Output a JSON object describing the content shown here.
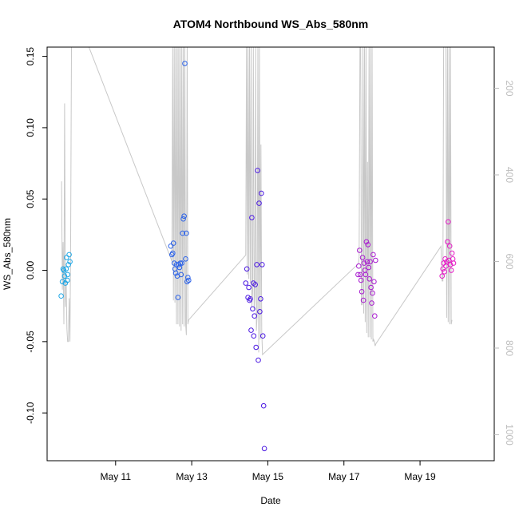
{
  "chart_data": {
    "type": "scatter",
    "title": "ATOM4 Northbound WS_Abs_580nm",
    "xlabel": "Date",
    "ylabel": "WS_Abs_580nm",
    "x_unit": "day_of_may",
    "xlim": [
      9.2,
      20.95
    ],
    "ylim": [
      -0.1335,
      0.1565
    ],
    "x_ticks": [
      {
        "value": 11,
        "label": "May 11"
      },
      {
        "value": 13,
        "label": "May 13"
      },
      {
        "value": 15,
        "label": "May 15"
      },
      {
        "value": 17,
        "label": "May 17"
      },
      {
        "value": 19,
        "label": "May 19"
      }
    ],
    "y_ticks": [
      {
        "value": -0.1,
        "label": "-0.10"
      },
      {
        "value": -0.05,
        "label": "-0.05"
      },
      {
        "value": 0.0,
        "label": "0.00"
      },
      {
        "value": 0.05,
        "label": "0.05"
      },
      {
        "value": 0.1,
        "label": "0.10"
      },
      {
        "value": 0.15,
        "label": "0.15"
      }
    ],
    "right_axis": {
      "lim": [
        1060,
        105
      ],
      "color": "#bdbdbd",
      "ticks": [
        {
          "value": 200,
          "label": "200"
        },
        {
          "value": 400,
          "label": "400"
        },
        {
          "value": 600,
          "label": "600"
        },
        {
          "value": 800,
          "label": "800"
        },
        {
          "value": 1000,
          "label": "1000"
        }
      ]
    },
    "grid": false,
    "legend": "none",
    "series": [
      {
        "color": "#1ea7e6",
        "points": [
          [
            9.57,
            -0.018
          ],
          [
            9.6,
            -0.008
          ],
          [
            9.62,
            0.001
          ],
          [
            9.64,
            0.0
          ],
          [
            9.66,
            -0.004
          ],
          [
            9.68,
            -0.009
          ],
          [
            9.7,
            0.001
          ],
          [
            9.71,
            0.009
          ],
          [
            9.73,
            -0.007
          ],
          [
            9.74,
            -0.003
          ],
          [
            9.76,
            0.004
          ],
          [
            9.78,
            0.011
          ],
          [
            9.8,
            0.006
          ]
        ]
      },
      {
        "color": "#2a61e8",
        "points": [
          [
            12.45,
            0.017
          ],
          [
            12.48,
            0.011
          ],
          [
            12.5,
            0.012
          ],
          [
            12.52,
            0.019
          ],
          [
            12.54,
            0.005
          ],
          [
            12.56,
            0.001
          ],
          [
            12.58,
            -0.002
          ],
          [
            12.6,
            0.004
          ],
          [
            12.62,
            -0.004
          ],
          [
            12.64,
            -0.019
          ],
          [
            12.66,
            0.004
          ],
          [
            12.68,
            0.002
          ],
          [
            12.7,
            0.005
          ],
          [
            12.72,
            -0.003
          ],
          [
            12.74,
            0.005
          ],
          [
            12.76,
            0.026
          ],
          [
            12.78,
            0.036
          ],
          [
            12.8,
            0.038
          ],
          [
            12.82,
            0.145
          ],
          [
            12.84,
            0.008
          ],
          [
            12.86,
            0.026
          ],
          [
            12.88,
            -0.008
          ],
          [
            12.9,
            -0.005
          ],
          [
            12.92,
            -0.007
          ]
        ]
      },
      {
        "color": "#4b19e2",
        "points": [
          [
            14.42,
            -0.009
          ],
          [
            14.45,
            0.001
          ],
          [
            14.48,
            -0.019
          ],
          [
            14.5,
            -0.012
          ],
          [
            14.52,
            -0.021
          ],
          [
            14.54,
            -0.02
          ],
          [
            14.56,
            -0.042
          ],
          [
            14.58,
            0.037
          ],
          [
            14.6,
            -0.027
          ],
          [
            14.62,
            -0.009
          ],
          [
            14.63,
            -0.046
          ],
          [
            14.65,
            -0.032
          ],
          [
            14.67,
            -0.01
          ],
          [
            14.69,
            -0.054
          ],
          [
            14.71,
            0.004
          ],
          [
            14.73,
            0.07
          ],
          [
            14.75,
            -0.063
          ],
          [
            14.77,
            0.047
          ],
          [
            14.79,
            -0.029
          ],
          [
            14.81,
            -0.02
          ],
          [
            14.83,
            0.054
          ],
          [
            14.85,
            0.004
          ],
          [
            14.87,
            -0.046
          ],
          [
            14.89,
            -0.095
          ],
          [
            14.91,
            -0.125
          ]
        ]
      },
      {
        "color": "#a81ad0",
        "points": [
          [
            17.37,
            -0.003
          ],
          [
            17.39,
            0.003
          ],
          [
            17.41,
            0.014
          ],
          [
            17.43,
            -0.003
          ],
          [
            17.45,
            -0.007
          ],
          [
            17.47,
            -0.015
          ],
          [
            17.49,
            0.009
          ],
          [
            17.51,
            -0.021
          ],
          [
            17.53,
            0.005
          ],
          [
            17.55,
            0.0
          ],
          [
            17.57,
            -0.003
          ],
          [
            17.59,
            0.02
          ],
          [
            17.61,
            0.006
          ],
          [
            17.63,
            0.018
          ],
          [
            17.65,
            0.002
          ],
          [
            17.67,
            -0.006
          ],
          [
            17.69,
            0.006
          ],
          [
            17.71,
            -0.012
          ],
          [
            17.73,
            -0.023
          ],
          [
            17.75,
            -0.016
          ],
          [
            17.77,
            0.011
          ],
          [
            17.79,
            -0.008
          ],
          [
            17.81,
            -0.032
          ],
          [
            17.83,
            0.007
          ]
        ]
      },
      {
        "color": "#e51ac6",
        "points": [
          [
            19.58,
            -0.004
          ],
          [
            19.6,
            0.001
          ],
          [
            19.62,
            0.005
          ],
          [
            19.64,
            -0.001
          ],
          [
            19.66,
            0.008
          ],
          [
            19.68,
            0.003
          ],
          [
            19.7,
            0.006
          ],
          [
            19.72,
            0.02
          ],
          [
            19.74,
            0.034
          ],
          [
            19.76,
            0.007
          ],
          [
            19.78,
            0.017
          ],
          [
            19.8,
            0.004
          ],
          [
            19.82,
            0.0
          ],
          [
            19.84,
            0.012
          ],
          [
            19.86,
            0.008
          ],
          [
            19.88,
            0.005
          ]
        ]
      }
    ],
    "secondary_line": {
      "color": "#c8c8c8",
      "points": [
        [
          9.58,
          415
        ],
        [
          9.6,
          665
        ],
        [
          9.62,
          555
        ],
        [
          9.64,
          745
        ],
        [
          9.66,
          235
        ],
        [
          9.68,
          705
        ],
        [
          9.7,
          640
        ],
        [
          9.72,
          755
        ],
        [
          9.74,
          785
        ],
        [
          9.76,
          785
        ],
        [
          9.78,
          685
        ],
        [
          9.8,
          785
        ],
        [
          9.82,
          550
        ],
        [
          9.84,
          105
        ],
        [
          10.3,
          105
        ],
        [
          12.46,
          595
        ],
        [
          12.48,
          600
        ],
        [
          12.5,
          105
        ],
        [
          12.52,
          690
        ],
        [
          12.54,
          105
        ],
        [
          12.56,
          695
        ],
        [
          12.58,
          105
        ],
        [
          12.6,
          745
        ],
        [
          12.62,
          105
        ],
        [
          12.64,
          745
        ],
        [
          12.66,
          105
        ],
        [
          12.68,
          750
        ],
        [
          12.7,
          105
        ],
        [
          12.72,
          760
        ],
        [
          12.74,
          105
        ],
        [
          12.76,
          745
        ],
        [
          12.78,
          105
        ],
        [
          12.8,
          750
        ],
        [
          12.82,
          105
        ],
        [
          12.84,
          745
        ],
        [
          12.86,
          770
        ],
        [
          12.88,
          105
        ],
        [
          12.9,
          745
        ],
        [
          12.92,
          735
        ],
        [
          14.42,
          585
        ],
        [
          14.44,
          105
        ],
        [
          14.46,
          630
        ],
        [
          14.48,
          105
        ],
        [
          14.5,
          640
        ],
        [
          14.52,
          105
        ],
        [
          14.54,
          650
        ],
        [
          14.56,
          105
        ],
        [
          14.58,
          705
        ],
        [
          14.6,
          670
        ],
        [
          14.62,
          105
        ],
        [
          14.64,
          710
        ],
        [
          14.66,
          680
        ],
        [
          14.68,
          105
        ],
        [
          14.7,
          760
        ],
        [
          14.72,
          720
        ],
        [
          14.74,
          105
        ],
        [
          14.76,
          810
        ],
        [
          14.78,
          105
        ],
        [
          14.8,
          780
        ],
        [
          14.82,
          330
        ],
        [
          14.84,
          760
        ],
        [
          14.86,
          815
        ],
        [
          17.38,
          605
        ],
        [
          17.4,
          590
        ],
        [
          17.42,
          105
        ],
        [
          17.44,
          105
        ],
        [
          17.46,
          700
        ],
        [
          17.48,
          700
        ],
        [
          17.5,
          105
        ],
        [
          17.52,
          720
        ],
        [
          17.54,
          105
        ],
        [
          17.56,
          740
        ],
        [
          17.58,
          105
        ],
        [
          17.6,
          765
        ],
        [
          17.62,
          370
        ],
        [
          17.64,
          775
        ],
        [
          17.66,
          105
        ],
        [
          17.68,
          775
        ],
        [
          17.7,
          105
        ],
        [
          17.72,
          780
        ],
        [
          17.74,
          105
        ],
        [
          17.76,
          785
        ],
        [
          17.78,
          780
        ],
        [
          17.8,
          785
        ],
        [
          17.82,
          795
        ],
        [
          17.84,
          790
        ],
        [
          19.55,
          565
        ],
        [
          19.58,
          645
        ],
        [
          19.6,
          645
        ],
        [
          19.62,
          105
        ],
        [
          19.64,
          105
        ],
        [
          19.66,
          105
        ],
        [
          19.68,
          105
        ],
        [
          19.7,
          730
        ],
        [
          19.72,
          105
        ],
        [
          19.74,
          740
        ],
        [
          19.76,
          105
        ],
        [
          19.78,
          745
        ],
        [
          19.8,
          105
        ],
        [
          19.82,
          745
        ],
        [
          19.84,
          735
        ]
      ]
    }
  }
}
